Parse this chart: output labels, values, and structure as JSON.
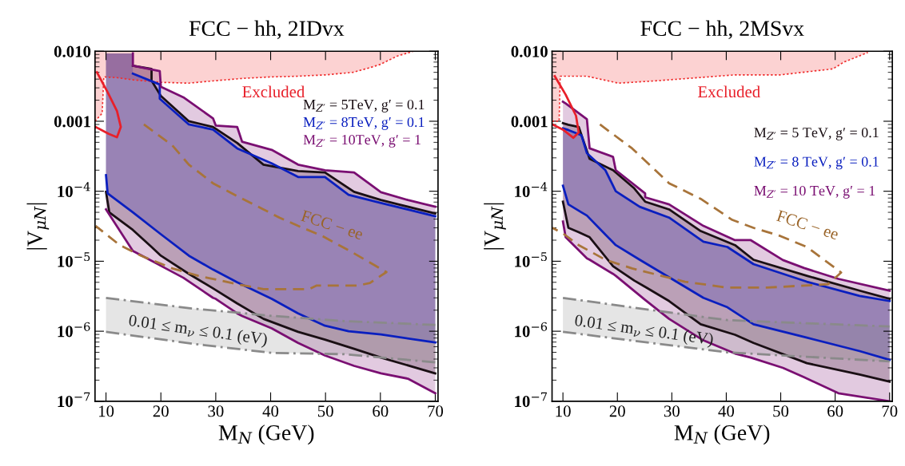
{
  "chart_data": [
    {
      "type": "line",
      "title": "FCC − hh, 2IDvx",
      "xlabel": "M$_{N}$ (GeV)",
      "ylabel": "|V$_{μN}$|",
      "log": "y",
      "xlim": [
        8,
        70.5
      ],
      "ylim": [
        1e-07,
        0.01
      ],
      "xticks": [
        10,
        20,
        30,
        40,
        50,
        60,
        70
      ],
      "yticks": [
        {
          "value": 1e-07,
          "label": "10$^{−7}$"
        },
        {
          "value": 1e-06,
          "label": "10$^{−6}$"
        },
        {
          "value": 1e-05,
          "label": "10$^{−5}$"
        },
        {
          "value": 0.0001,
          "label": "10$^{−4}$"
        },
        {
          "value": 0.001,
          "label": "0.001"
        },
        {
          "value": 0.01,
          "label": "0.010"
        }
      ],
      "legend": "top right",
      "annotations": [
        "Excluded",
        "FCC − ee",
        "0.01 ≤ m$_{ν}$ ≤ 0.1 (eV)"
      ],
      "series": [
        {
          "color": "#f03030",
          "line_style": "dotted",
          "x": [
            8,
            9.3,
            9.6,
            12,
            15,
            20,
            25,
            30,
            35,
            40,
            45,
            50,
            55,
            58,
            60,
            63,
            66
          ],
          "values": [
            0.001,
            0.0013,
            0.0043,
            0.0042,
            0.0039,
            0.0036,
            0.0035,
            0.0038,
            0.0041,
            0.0043,
            0.0044,
            0.0046,
            0.005,
            0.0058,
            0.0065,
            0.0085,
            0.01
          ],
          "lower": [
            0.001,
            0.0013,
            0.0043,
            0.0042,
            0.0039,
            0.0036,
            0.0035,
            0.0038,
            0.0041,
            0.0043,
            0.0044,
            0.0046,
            0.005,
            0.0058,
            0.0065,
            0.0085,
            0.01
          ],
          "upper": [
            0.01,
            0.01,
            0.01,
            0.01,
            0.01,
            0.01,
            0.01,
            0.01,
            0.01,
            0.01,
            0.01,
            0.01,
            0.01,
            0.01,
            0.01,
            0.01,
            0.01
          ]
        },
        {
          "name": "M$_{Z′}$ = 5TeV, g′ = 0.1",
          "color": "#1a0f14",
          "line_style": "solid",
          "x": [
            10,
            10.6,
            14.9,
            14.9,
            18.3,
            18.3,
            20,
            25.1,
            29.5,
            33.9,
            38.7,
            45,
            49.9,
            55.2,
            60.1,
            70
          ],
          "values": [
            null,
            null,
            null,
            0.0062,
            0.0056,
            0.0038,
            0.0023,
            0.001,
            0.00083,
            0.00049,
            0.00024,
            0.000194,
            0.000186,
            9.8e-05,
            7.5e-05,
            4.8e-05
          ],
          "upper": [
            0.0093,
            0.0093,
            0.0093,
            0.0062,
            0.0056,
            0.0038,
            0.0023,
            0.001,
            0.00083,
            0.00049,
            0.00024,
            0.000194,
            0.000186,
            9.8e-05,
            7.5e-05,
            4.8e-05
          ],
          "lower": [
            9.8e-05,
            5e-05,
            2.8e-05,
            2.8e-05,
            1.6e-05,
            1.6e-05,
            1.2e-05,
            6.6e-06,
            4.1e-06,
            2.5e-06,
            1.5e-06,
            9.8e-07,
            7.6e-07,
            5.6e-07,
            4.2e-07,
            2.5e-07
          ]
        },
        {
          "color": "#1a0f14",
          "line_style": "solid",
          "x": [
            10,
            10.6,
            14.9,
            14.9,
            18.3,
            18.3,
            20,
            25.1,
            29.5,
            33.9,
            38.7,
            45,
            49.9,
            55.2,
            60.1,
            70
          ],
          "values": [
            9.8e-05,
            5e-05,
            2.8e-05,
            2.8e-05,
            1.6e-05,
            1.6e-05,
            1.2e-05,
            6.6e-06,
            4.1e-06,
            2.5e-06,
            1.5e-06,
            9.8e-07,
            7.6e-07,
            5.6e-07,
            4.2e-07,
            2.5e-07
          ]
        },
        {
          "name": "M$_{Z′}$ = 8TeV, g′ = 0.1",
          "color": "#0a1fbf",
          "line_style": "solid",
          "x": [
            10,
            10.3,
            14.9,
            14.9,
            19.8,
            19.8,
            25.1,
            29.5,
            33.9,
            40.2,
            45,
            49.9,
            54.2,
            60.1,
            70
          ],
          "values": [
            null,
            null,
            null,
            0.0048,
            0.00335,
            0.0021,
            0.0009,
            0.00076,
            0.00041,
            0.00025,
            0.00016,
            0.00016,
            8.9e-05,
            6.8e-05,
            4.4e-05
          ],
          "upper": [
            0.0093,
            0.0093,
            0.0093,
            0.0048,
            0.00335,
            0.0021,
            0.0009,
            0.00076,
            0.00041,
            0.00025,
            0.00016,
            0.00016,
            8.9e-05,
            6.8e-05,
            4.4e-05
          ],
          "lower": [
            0.00017,
            9.3e-05,
            5e-05,
            5e-05,
            2.5e-05,
            2.5e-05,
            1.2e-05,
            7.6e-06,
            5e-06,
            2.9e-06,
            1.8e-06,
            1.2e-06,
            1e-06,
            9e-07,
            6.9e-07
          ]
        },
        {
          "color": "#0a1fbf",
          "line_style": "solid",
          "x": [
            10,
            10.3,
            14.9,
            14.9,
            19.8,
            19.8,
            25.1,
            29.5,
            33.9,
            40.2,
            45,
            49.9,
            54.2,
            60.1,
            70
          ],
          "values": [
            0.00017,
            9.3e-05,
            5e-05,
            5e-05,
            2.5e-05,
            2.5e-05,
            1.2e-05,
            7.6e-06,
            5e-06,
            2.9e-06,
            1.8e-06,
            1.2e-06,
            1e-06,
            9e-07,
            6.9e-07
          ]
        },
        {
          "name": "M$_{Z′}$ = 10TeV, g′ = 1",
          "color": "#7a0f72",
          "line_style": "solid",
          "x": [
            10,
            14.9,
            14.9,
            19.8,
            20,
            24.1,
            29.5,
            30,
            33.9,
            34.8,
            40.2,
            45,
            49.9,
            55.2,
            60.1,
            65,
            70
          ],
          "values": [
            null,
            0.0093,
            0.0062,
            0.0052,
            0.0031,
            0.0022,
            0.0011,
            0.00087,
            0.00083,
            0.00051,
            0.00039,
            0.00024,
            0.0002,
            0.000186,
            9.7e-05,
            7.5e-05,
            6e-05
          ],
          "upper": [
            0.0093,
            0.0093,
            0.0062,
            0.0052,
            0.0031,
            0.0022,
            0.0011,
            0.00087,
            0.00083,
            0.00051,
            0.00039,
            0.00024,
            0.0002,
            0.000186,
            9.7e-05,
            7.5e-05,
            6e-05
          ],
          "lower": [
            5.5e-05,
            1.4e-05,
            1.4e-05,
            8.8e-06,
            8.6e-06,
            5.8e-06,
            3e-06,
            2.9e-06,
            1.8e-06,
            1.65e-06,
            1.1e-06,
            6.8e-07,
            4.5e-07,
            3.2e-07,
            2.5e-07,
            2.1e-07,
            1.3e-07
          ]
        },
        {
          "color": "#7a0f72",
          "line_style": "solid",
          "x": [
            10,
            14.9,
            14.9,
            19.8,
            20,
            24.1,
            29.5,
            30,
            33.9,
            34.8,
            40.2,
            45,
            49.9,
            55.2,
            60.1,
            65,
            70
          ],
          "values": [
            5.5e-05,
            1.4e-05,
            1.4e-05,
            8.8e-06,
            8.6e-06,
            5.8e-06,
            3e-06,
            2.9e-06,
            1.8e-06,
            1.65e-06,
            1.1e-06,
            6.8e-07,
            4.5e-07,
            3.2e-07,
            2.5e-07,
            2.1e-07,
            1.3e-07
          ]
        },
        {
          "color": "#8a8a8a",
          "line_style": "dashdot",
          "x": [
            10,
            26,
            40.2,
            53.3,
            70
          ],
          "values": [
            3e-06,
            2.1e-06,
            1.66e-06,
            1.4e-06,
            1.23e-06
          ],
          "upper": [
            3e-06,
            2.1e-06,
            1.66e-06,
            1.4e-06,
            1.23e-06
          ],
          "lower": [
            9.8e-07,
            6.6e-07,
            4.9e-07,
            4.7e-07,
            3.6e-07
          ]
        },
        {
          "color": "#8a8a8a",
          "line_style": "dashdot",
          "x": [
            10,
            26,
            40.2,
            53.3,
            70
          ],
          "values": [
            9.8e-07,
            6.6e-07,
            4.9e-07,
            4.7e-07,
            3.6e-07
          ]
        },
        {
          "color": "#a8743a",
          "line_style": "dashed",
          "x": [
            16.9,
            22.1,
            25.1,
            29.5,
            33.9,
            38.7,
            41.6,
            45,
            49.4,
            54.8,
            61.1,
            58.1,
            56,
            48.4,
            47,
            38.7,
            33.9,
            26.8,
            22.1,
            16.4,
            12.5,
            8.1
          ],
          "values": [
            0.0009,
            0.00045,
            0.00024,
            0.00013,
            8.5e-05,
            5.5e-05,
            4.2e-05,
            3.2e-05,
            2.3e-05,
            1.35e-05,
            7e-06,
            4.9e-06,
            4.5e-06,
            4.5e-06,
            4e-06,
            4e-06,
            4.7e-06,
            6.2e-06,
            7.9e-06,
            1.2e-05,
            1.7e-05,
            3.2e-05
          ]
        },
        {
          "color": "#e8202a",
          "line_style": "solid",
          "x": [
            8.35,
            10.3,
            12.0,
            12.7,
            12.0,
            10.5,
            8.1
          ],
          "values": [
            0.005,
            0.0026,
            0.0014,
            0.00083,
            0.00059,
            0.00066,
            0.00083
          ]
        }
      ]
    },
    {
      "type": "line",
      "title": "FCC − hh, 2MSvx",
      "xlabel": "M$_{N}$ (GeV)",
      "ylabel": "|V$_{μN}$|",
      "log": "y",
      "xlim": [
        8,
        70.5
      ],
      "ylim": [
        1e-07,
        0.01
      ],
      "xticks": [
        10,
        20,
        30,
        40,
        50,
        60,
        70
      ],
      "yticks": [
        {
          "value": 1e-07,
          "label": "10$^{−7}$"
        },
        {
          "value": 1e-06,
          "label": "10$^{−6}$"
        },
        {
          "value": 1e-05,
          "label": "10$^{−5}$"
        },
        {
          "value": 0.0001,
          "label": "10$^{−4}$"
        },
        {
          "value": 0.001,
          "label": "0.001"
        },
        {
          "value": 0.01,
          "label": "0.010"
        }
      ],
      "legend": "top right",
      "annotations": [
        "Excluded",
        "FCC − ee",
        "0.01 ≤ m$_{ν}$ ≤ 0.1 (eV)"
      ],
      "series": [
        {
          "color": "#f03030",
          "line_style": "dotted",
          "x": [
            8,
            9.3,
            9.5,
            14.4,
            20.2,
            27.5,
            41.6,
            49.9,
            59.6,
            61.6,
            66
          ],
          "values": [
            0.001,
            0.001,
            0.0044,
            0.0044,
            0.0035,
            0.0038,
            0.0046,
            0.0046,
            0.0056,
            0.007,
            0.0096
          ],
          "lower": [
            0.001,
            0.001,
            0.0044,
            0.0044,
            0.0035,
            0.0038,
            0.0046,
            0.0046,
            0.0056,
            0.007,
            0.0096
          ],
          "upper": [
            0.01,
            0.01,
            0.01,
            0.01,
            0.01,
            0.01,
            0.01,
            0.01,
            0.01,
            0.01,
            0.01
          ]
        },
        {
          "name": "M$_{Z′}$ = 5 TeV, g′ = 0.1",
          "color": "#1a0f14",
          "line_style": "solid",
          "x": [
            10,
            11,
            12.9,
            14.9,
            19.2,
            23.1,
            25.1,
            29.5,
            35.3,
            41.6,
            45,
            54.8,
            64.5,
            70
          ],
          "values": [
            0.00094,
            0.00089,
            0.00083,
            0.00029,
            0.0002,
            0.00011,
            7.1e-05,
            5.5e-05,
            2.7e-05,
            1.7e-05,
            1.05e-05,
            6.2e-06,
            3.8e-06,
            2.9e-06
          ],
          "upper": [
            0.00094,
            0.00089,
            0.00083,
            0.00029,
            0.0002,
            0.00011,
            7.1e-05,
            5.5e-05,
            2.7e-05,
            1.7e-05,
            1.05e-05,
            6.2e-06,
            3.8e-06,
            2.9e-06
          ],
          "lower": [
            7.1e-05,
            3e-05,
            2.6e-05,
            2.2e-05,
            8.5e-06,
            5.3e-06,
            4.3e-06,
            2.7e-06,
            1.26e-06,
            8.9e-07,
            6.8e-07,
            3.5e-07,
            2.4e-07,
            1.9e-07
          ]
        },
        {
          "color": "#1a0f14",
          "line_style": "solid",
          "x": [
            10,
            11,
            12.9,
            14.9,
            19.2,
            23.1,
            25.1,
            29.5,
            35.3,
            41.6,
            45,
            54.8,
            64.5,
            70
          ],
          "values": [
            7.1e-05,
            3e-05,
            2.6e-05,
            2.2e-05,
            8.5e-06,
            5.3e-06,
            4.3e-06,
            2.7e-06,
            1.26e-06,
            8.9e-07,
            6.8e-07,
            3.5e-07,
            2.4e-07,
            1.9e-07
          ]
        },
        {
          "name": "M$_{Z′}$ = 8 TeV, g′ = 0.1",
          "color": "#0a1fbf",
          "line_style": "solid",
          "x": [
            10,
            11,
            13.4,
            14.4,
            17.8,
            19.7,
            24.1,
            29.5,
            35.8,
            40.2,
            45,
            54.8,
            64.5,
            70
          ],
          "values": [
            0.00079,
            0.00075,
            0.00063,
            0.00035,
            0.0002,
            0.0001,
            6e-05,
            4.2e-05,
            1.9e-05,
            1.6e-05,
            9.1e-06,
            5.1e-06,
            3.2e-06,
            2.7e-06
          ],
          "upper": [
            0.00079,
            0.00075,
            0.00063,
            0.00035,
            0.0002,
            0.0001,
            6e-05,
            4.2e-05,
            1.9e-05,
            1.6e-05,
            9.1e-06,
            5.1e-06,
            3.2e-06,
            2.7e-06
          ],
          "lower": [
            0.00012,
            6.5e-05,
            5e-05,
            4.5e-05,
            2.4e-05,
            1.7e-05,
            1.05e-05,
            5.9e-06,
            3e-06,
            2.2e-06,
            1.26e-06,
            8.1e-07,
            5.2e-07,
            3.9e-07
          ]
        },
        {
          "color": "#0a1fbf",
          "line_style": "solid",
          "x": [
            10,
            11,
            13.4,
            14.4,
            17.8,
            19.7,
            24.1,
            29.5,
            35.8,
            40.2,
            45,
            54.8,
            64.5,
            70
          ],
          "values": [
            0.00012,
            6.5e-05,
            5e-05,
            4.5e-05,
            2.4e-05,
            1.7e-05,
            1.05e-05,
            5.9e-06,
            3e-06,
            2.2e-06,
            1.26e-06,
            8.1e-07,
            5.2e-07,
            3.9e-07
          ]
        },
        {
          "name": "M$_{Z′}$ = 10 TeV, g′ = 1",
          "color": "#7a0f72",
          "line_style": "solid",
          "x": [
            10,
            10.5,
            14.4,
            14.9,
            19.2,
            19.7,
            25.1,
            25.1,
            29.5,
            35.8,
            41.6,
            44.5,
            50.4,
            54.3,
            60.6,
            70
          ],
          "values": [
            0.0019,
            0.0018,
            0.00107,
            0.00041,
            0.00031,
            0.0002,
            9.3e-05,
            8.2e-05,
            6.5e-05,
            3.2e-05,
            2e-05,
            2e-05,
            1.04e-05,
            8e-06,
            5.6e-06,
            3.8e-06
          ],
          "upper": [
            0.0019,
            0.0018,
            0.00107,
            0.00041,
            0.00031,
            0.0002,
            9.3e-05,
            8.2e-05,
            6.5e-05,
            3.2e-05,
            2e-05,
            2e-05,
            1.04e-05,
            8e-06,
            5.6e-06,
            3.8e-06
          ],
          "lower": [
            3.7e-05,
            2.2e-05,
            1.1e-05,
            1.05e-05,
            6.6e-06,
            6.2e-06,
            2.8e-06,
            2.8e-06,
            1.5e-06,
            7.4e-07,
            4.8e-07,
            4.2e-07,
            3e-07,
            2.2e-07,
            1.3e-07,
            1e-07
          ]
        },
        {
          "color": "#7a0f72",
          "line_style": "solid",
          "x": [
            10,
            10.5,
            14.4,
            14.9,
            19.2,
            19.7,
            25.1,
            25.1,
            29.5,
            35.8,
            41.6,
            44.5,
            50.4,
            54.3,
            60.6,
            70
          ],
          "values": [
            3.7e-05,
            2.2e-05,
            1.1e-05,
            1.05e-05,
            6.6e-06,
            6.2e-06,
            2.8e-06,
            2.8e-06,
            1.5e-06,
            7.4e-07,
            4.8e-07,
            4.2e-07,
            3e-07,
            2.2e-07,
            1.3e-07,
            1e-07
          ]
        },
        {
          "color": "#8a8a8a",
          "line_style": "dashdot",
          "x": [
            10,
            27.5,
            40.2,
            70
          ],
          "values": [
            3e-06,
            1.95e-06,
            1.44e-06,
            1.17e-06
          ],
          "upper": [
            3e-06,
            1.95e-06,
            1.44e-06,
            1.17e-06
          ],
          "lower": [
            9.8e-07,
            6.6e-07,
            5e-07,
            3.7e-07
          ]
        },
        {
          "color": "#8a8a8a",
          "line_style": "dashdot",
          "x": [
            10,
            27.5,
            40.2,
            70
          ],
          "values": [
            9.8e-07,
            6.6e-07,
            5e-07,
            3.7e-07
          ]
        },
        {
          "color": "#a8743a",
          "line_style": "dashed",
          "x": [
            16.8,
            22.7,
            29.5,
            35.3,
            41.1,
            45,
            49.9,
            54.8,
            61.1,
            58.7,
            47.5,
            40.2,
            32.4,
            22.7,
            17.8,
            12.9,
            10,
            8.05
          ],
          "values": [
            0.0009,
            0.00041,
            0.00013,
            7.8e-05,
            3.9e-05,
            3e-05,
            2.3e-05,
            1.6e-05,
            6.9e-06,
            4.7e-06,
            4.2e-06,
            4.2e-06,
            5.1e-06,
            7.9e-06,
            1.05e-05,
            1.7e-05,
            2.5e-05,
            3e-05
          ]
        },
        {
          "color": "#e8202a",
          "line_style": "solid",
          "x": [
            8.5,
            10.5,
            12.4,
            12.9,
            11.9,
            10,
            8.05
          ],
          "values": [
            0.0044,
            0.0024,
            0.0012,
            0.00069,
            0.00058,
            0.00076,
            0.0009
          ]
        }
      ]
    }
  ]
}
